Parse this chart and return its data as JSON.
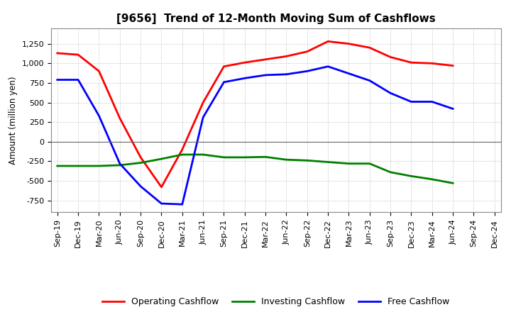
{
  "title": "[9656]  Trend of 12-Month Moving Sum of Cashflows",
  "ylabel": "Amount (million yen)",
  "x_labels": [
    "Sep-19",
    "Dec-19",
    "Mar-20",
    "Jun-20",
    "Sep-20",
    "Dec-20",
    "Mar-21",
    "Jun-21",
    "Sep-21",
    "Dec-21",
    "Mar-22",
    "Jun-22",
    "Sep-22",
    "Dec-22",
    "Mar-23",
    "Jun-23",
    "Sep-23",
    "Dec-23",
    "Mar-24",
    "Jun-24",
    "Sep-24",
    "Dec-24"
  ],
  "operating_cashflow": [
    1130,
    1110,
    900,
    300,
    -200,
    -580,
    -100,
    500,
    960,
    1010,
    1050,
    1090,
    1150,
    1280,
    1250,
    1200,
    1080,
    1010,
    1000,
    970,
    null,
    null
  ],
  "investing_cashflow": [
    -310,
    -310,
    -310,
    -300,
    -270,
    -220,
    -165,
    -165,
    -200,
    -200,
    -195,
    -230,
    -240,
    -260,
    -280,
    -280,
    -390,
    -440,
    -480,
    -530,
    null,
    null
  ],
  "free_cashflow": [
    790,
    790,
    330,
    -280,
    -570,
    -790,
    -800,
    310,
    760,
    810,
    850,
    860,
    900,
    960,
    870,
    780,
    620,
    510,
    510,
    420,
    null,
    null
  ],
  "operating_color": "#ff0000",
  "investing_color": "#008000",
  "free_color": "#0000ff",
  "ylim": [
    -900,
    1450
  ],
  "yticks": [
    -750,
    -500,
    -250,
    0,
    250,
    500,
    750,
    1000,
    1250
  ],
  "background_color": "#ffffff",
  "grid_color": "#b0b0b0",
  "line_width": 2.0,
  "fig_width": 7.2,
  "fig_height": 4.4,
  "title_fontsize": 11,
  "axis_fontsize": 8,
  "ylabel_fontsize": 8.5
}
